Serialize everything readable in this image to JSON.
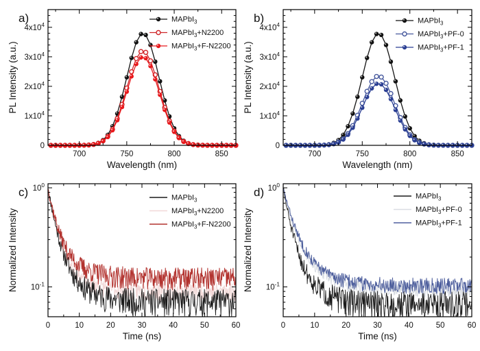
{
  "figure": {
    "background": "#ffffff",
    "panel_labels": [
      "a)",
      "b)",
      "c)",
      "d)"
    ]
  },
  "chart_data": [
    {
      "id": "a",
      "type": "scatter",
      "panel_label": "a)",
      "xlabel": "Wavelength (nm)",
      "ylabel": "PL Intensity (a.u.)",
      "xlim": [
        667,
        865
      ],
      "ylim": [
        0,
        46000
      ],
      "xticks": [
        {
          "v": 700,
          "t": "700"
        },
        {
          "v": 750,
          "t": "750"
        },
        {
          "v": 800,
          "t": "800"
        },
        {
          "v": 850,
          "t": "850"
        }
      ],
      "yticks": [
        {
          "v": 0,
          "t": "0"
        },
        {
          "v": 10000,
          "t": "1x10^4^"
        },
        {
          "v": 20000,
          "t": "2x10^4^"
        },
        {
          "v": 30000,
          "t": "3x10^4^"
        },
        {
          "v": 40000,
          "t": "4x10^4^"
        }
      ],
      "xminor": [
        675,
        725,
        775,
        825
      ],
      "yminor_step": 2000,
      "legend_position": "top-right",
      "x_points": {
        "start": 670,
        "step": 5,
        "count": 40
      },
      "profile": [
        0,
        0,
        0,
        0,
        0,
        0.0001,
        0.0004,
        0.0013,
        0.0036,
        0.0093,
        0.0219,
        0.0473,
        0.0936,
        0.1701,
        0.2834,
        0.433,
        0.6065,
        0.7794,
        0.9191,
        0.9931,
        0.9846,
        0.8952,
        0.7463,
        0.5712,
        0.4005,
        0.2578,
        0.152,
        0.0822,
        0.0408,
        0.0186,
        0.0077,
        0.003,
        0.001,
        0.0003,
        0.0001,
        0,
        0,
        0,
        0,
        0
      ],
      "peak_center_nm": 767,
      "series": [
        {
          "label": "MAPbI~3~",
          "peak": 38000,
          "color": "#121212",
          "marker": "filled"
        },
        {
          "label": "MAPbI~3~+N2200",
          "peak": 32000,
          "color": "#cf2427",
          "marker": "open"
        },
        {
          "label": "MAPbI~3~+F-N2200",
          "peak": 30000,
          "color": "#e8191c",
          "marker": "filled"
        }
      ]
    },
    {
      "id": "b",
      "type": "scatter",
      "panel_label": "b)",
      "xlabel": "Wavelength (nm)",
      "ylabel": "PL Intensity (a.u.)",
      "xlim": [
        667,
        865
      ],
      "ylim": [
        0,
        46000
      ],
      "xticks": [
        {
          "v": 700,
          "t": "700"
        },
        {
          "v": 750,
          "t": "750"
        },
        {
          "v": 800,
          "t": "800"
        },
        {
          "v": 850,
          "t": "850"
        }
      ],
      "yticks": [
        {
          "v": 0,
          "t": "0"
        },
        {
          "v": 10000,
          "t": "1x10^4^"
        },
        {
          "v": 20000,
          "t": "2x10^4^"
        },
        {
          "v": 30000,
          "t": "3x10^4^"
        },
        {
          "v": 40000,
          "t": "4x10^4^"
        }
      ],
      "xminor": [
        675,
        725,
        775,
        825
      ],
      "yminor_step": 2000,
      "legend_position": "top-right",
      "x_points": {
        "start": 670,
        "step": 5,
        "count": 40
      },
      "profile": [
        0,
        0,
        0,
        0,
        0,
        0.0001,
        0.0004,
        0.0013,
        0.0036,
        0.0093,
        0.0219,
        0.0473,
        0.0936,
        0.1701,
        0.2834,
        0.433,
        0.6065,
        0.7794,
        0.9191,
        0.9931,
        0.9846,
        0.8952,
        0.7463,
        0.5712,
        0.4005,
        0.2578,
        0.152,
        0.0822,
        0.0408,
        0.0186,
        0.0077,
        0.003,
        0.001,
        0.0003,
        0.0001,
        0,
        0,
        0,
        0,
        0
      ],
      "peak_center_nm": 767,
      "series": [
        {
          "label": "MAPbI~3~",
          "peak": 38000,
          "color": "#121212",
          "marker": "filled"
        },
        {
          "label": "MAPbI~3~+PF-0",
          "peak": 23500,
          "color": "#46589d",
          "marker": "open"
        },
        {
          "label": "MAPbI~3~+PF-1",
          "peak": 21000,
          "color": "#2b3f93",
          "marker": "filled"
        }
      ]
    },
    {
      "id": "c",
      "type": "line",
      "panel_label": "c)",
      "xlabel": "Time (ns)",
      "ylabel": "Normalized Intensity",
      "xlim": [
        0,
        60
      ],
      "ylim_log": [
        0.05,
        1.1
      ],
      "xticks": [
        {
          "v": 0,
          "t": "0"
        },
        {
          "v": 10,
          "t": "10"
        },
        {
          "v": 20,
          "t": "20"
        },
        {
          "v": 30,
          "t": "30"
        },
        {
          "v": 40,
          "t": "40"
        },
        {
          "v": 50,
          "t": "50"
        },
        {
          "v": 60,
          "t": "60"
        }
      ],
      "yticks": [
        {
          "v": 1,
          "t": "10^0^"
        },
        {
          "v": 0.1,
          "t": "10^-1^"
        }
      ],
      "xminor": [
        5,
        15,
        25,
        35,
        45,
        55
      ],
      "yminor": [
        0.9,
        0.8,
        0.7,
        0.6,
        0.5,
        0.4,
        0.3,
        0.2,
        0.09,
        0.08,
        0.07,
        0.06,
        0.05
      ],
      "legend_position": "top-right",
      "t_step_ns": 0.15,
      "series": [
        {
          "label": "MAPbI~3~",
          "color": "#1a1a1a",
          "a1": 0.7,
          "tau1": 2.0,
          "a2": 0.22,
          "tau2": 5.5,
          "plateau": 0.072,
          "noise": 0.32,
          "seed": 11
        },
        {
          "label": "MAPbI~3~+N2200",
          "color": "#f2d8d7",
          "a1": 0.69,
          "tau1": 2.0,
          "a2": 0.21,
          "tau2": 5.5,
          "plateau": 0.091,
          "noise": 0.22,
          "seed": 23
        },
        {
          "label": "MAPbI~3~+F-N2200",
          "color": "#b2322e",
          "a1": 0.66,
          "tau1": 2.2,
          "a2": 0.2,
          "tau2": 6.0,
          "plateau": 0.124,
          "noise": 0.26,
          "seed": 37
        }
      ],
      "draw_order": [
        1,
        0,
        2
      ]
    },
    {
      "id": "d",
      "type": "line",
      "panel_label": "d)",
      "xlabel": "Time (ns)",
      "ylabel": "Normalized Intensity",
      "xlim": [
        0,
        60
      ],
      "ylim_log": [
        0.05,
        1.1
      ],
      "xticks": [
        {
          "v": 0,
          "t": "0"
        },
        {
          "v": 10,
          "t": "10"
        },
        {
          "v": 20,
          "t": "20"
        },
        {
          "v": 30,
          "t": "30"
        },
        {
          "v": 40,
          "t": "40"
        },
        {
          "v": 50,
          "t": "50"
        },
        {
          "v": 60,
          "t": "60"
        }
      ],
      "yticks": [
        {
          "v": 1,
          "t": "10^0^"
        },
        {
          "v": 0.1,
          "t": "10^-1^"
        }
      ],
      "xminor": [
        5,
        15,
        25,
        35,
        45,
        55
      ],
      "yminor": [
        0.9,
        0.8,
        0.7,
        0.6,
        0.5,
        0.4,
        0.3,
        0.2,
        0.09,
        0.08,
        0.07,
        0.06,
        0.05
      ],
      "legend_position": "top-right",
      "t_step_ns": 0.15,
      "series": [
        {
          "label": "MAPbI~3~",
          "color": "#1a1a1a",
          "a1": 0.7,
          "tau1": 2.0,
          "a2": 0.22,
          "tau2": 5.5,
          "plateau": 0.068,
          "noise": 0.32,
          "seed": 51
        },
        {
          "label": "MAPbI~3~+PF-0",
          "color": "#d9dde3",
          "a1": 0.62,
          "tau1": 2.6,
          "a2": 0.26,
          "tau2": 6.5,
          "plateau": 0.093,
          "noise": 0.16,
          "seed": 67
        },
        {
          "label": "MAPbI~3~+PF-1",
          "color": "#4e5f9d",
          "a1": 0.61,
          "tau1": 2.7,
          "a2": 0.26,
          "tau2": 6.5,
          "plateau": 0.104,
          "noise": 0.18,
          "seed": 83
        }
      ],
      "draw_order": [
        1,
        0,
        2
      ]
    }
  ]
}
